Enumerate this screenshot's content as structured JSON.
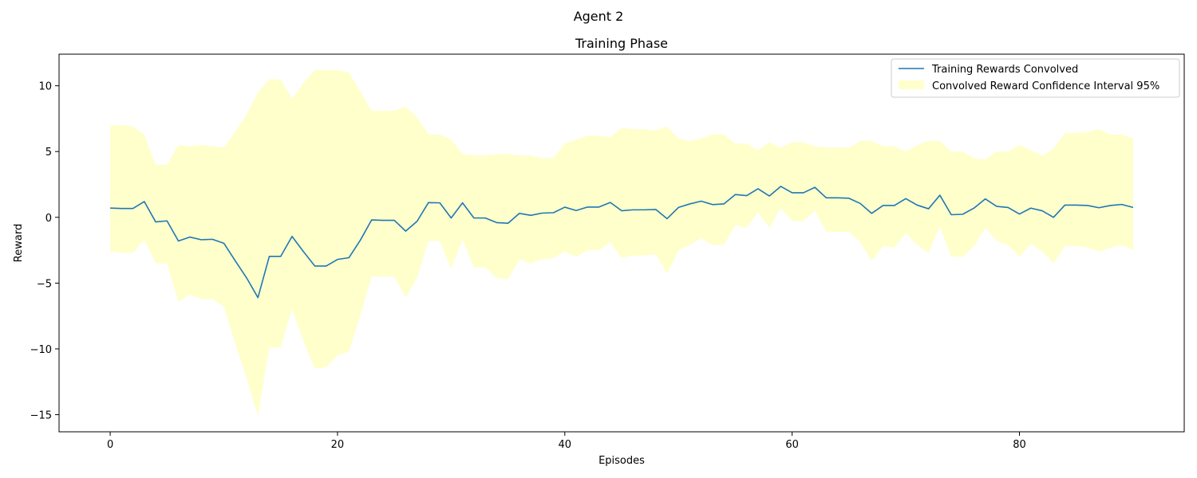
{
  "figure": {
    "suptitle": "Agent 2"
  },
  "chart_data": {
    "type": "line",
    "title": "Training Phase",
    "xlabel": "Episodes",
    "ylabel": "Reward",
    "xlim": [
      -4.5,
      94.5
    ],
    "ylim": [
      -16.3,
      12.4
    ],
    "xticks": [
      0,
      20,
      40,
      60,
      80
    ],
    "yticks": [
      -15,
      -10,
      -5,
      0,
      5,
      10
    ],
    "grid": false,
    "legend_position": "top-right",
    "colors": {
      "line": "#1f77b4",
      "band": "#ffffcc"
    },
    "series": [
      {
        "name": "Training Rewards Convolved",
        "kind": "line",
        "x": [
          0,
          1,
          2,
          3,
          4,
          5,
          6,
          7,
          8,
          9,
          10,
          11,
          12,
          13,
          14,
          15,
          16,
          17,
          18,
          19,
          20,
          21,
          22,
          23,
          24,
          25,
          26,
          27,
          28,
          29,
          30,
          31,
          32,
          33,
          34,
          35,
          36,
          37,
          38,
          39,
          40,
          41,
          42,
          43,
          44,
          45,
          46,
          47,
          48,
          49,
          50,
          51,
          52,
          53,
          54,
          55,
          56,
          57,
          58,
          59,
          60,
          61,
          62,
          63,
          64,
          65,
          66,
          67,
          68,
          69,
          70,
          71,
          72,
          73,
          74,
          75,
          76,
          77,
          78,
          79,
          80,
          81,
          82,
          83,
          84,
          85,
          86,
          87,
          88,
          89,
          90
        ],
        "y": [
          0.7,
          0.67,
          0.67,
          1.2,
          -0.35,
          -0.27,
          -1.8,
          -1.5,
          -1.7,
          -1.67,
          -1.97,
          -3.3,
          -4.6,
          -6.1,
          -2.97,
          -2.97,
          -1.45,
          -2.6,
          -3.7,
          -3.7,
          -3.2,
          -3.07,
          -1.75,
          -0.2,
          -0.23,
          -0.23,
          -1.05,
          -0.3,
          1.12,
          1.1,
          -0.05,
          1.1,
          -0.05,
          -0.05,
          -0.4,
          -0.45,
          0.3,
          0.15,
          0.32,
          0.35,
          0.77,
          0.52,
          0.78,
          0.78,
          1.13,
          0.5,
          0.57,
          0.57,
          0.6,
          -0.1,
          0.75,
          1.02,
          1.23,
          0.97,
          1.02,
          1.73,
          1.65,
          2.17,
          1.62,
          2.35,
          1.87,
          1.87,
          2.28,
          1.48,
          1.48,
          1.45,
          1.05,
          0.3,
          0.9,
          0.9,
          1.42,
          0.93,
          0.65,
          1.68,
          0.2,
          0.23,
          0.7,
          1.4,
          0.83,
          0.75,
          0.25,
          0.7,
          0.5,
          0.0,
          0.93,
          0.93,
          0.9,
          0.73,
          0.9,
          0.98,
          0.75
        ]
      },
      {
        "name": "Convolved Reward Confidence Interval 95%",
        "kind": "band",
        "x": [
          0,
          1,
          2,
          3,
          4,
          5,
          6,
          7,
          8,
          9,
          10,
          11,
          12,
          13,
          14,
          15,
          16,
          17,
          18,
          19,
          20,
          21,
          22,
          23,
          24,
          25,
          26,
          27,
          28,
          29,
          30,
          31,
          32,
          33,
          34,
          35,
          36,
          37,
          38,
          39,
          40,
          41,
          42,
          43,
          44,
          45,
          46,
          47,
          48,
          49,
          50,
          51,
          52,
          53,
          54,
          55,
          56,
          57,
          58,
          59,
          60,
          61,
          62,
          63,
          64,
          65,
          66,
          67,
          68,
          69,
          70,
          71,
          72,
          73,
          74,
          75,
          76,
          77,
          78,
          79,
          80,
          81,
          82,
          83,
          84,
          85,
          86,
          87,
          88,
          89,
          90
        ],
        "upper": [
          7.0,
          7.0,
          6.9,
          6.3,
          4.0,
          4.0,
          5.5,
          5.4,
          5.5,
          5.4,
          5.3,
          6.5,
          7.8,
          9.5,
          10.5,
          10.5,
          9.0,
          10.2,
          11.2,
          11.2,
          11.2,
          11.0,
          9.6,
          8.1,
          8.1,
          8.1,
          8.4,
          7.6,
          6.3,
          6.3,
          5.9,
          4.8,
          4.7,
          4.7,
          4.8,
          4.8,
          4.7,
          4.7,
          4.5,
          4.5,
          5.6,
          5.9,
          6.2,
          6.2,
          6.1,
          6.8,
          6.7,
          6.7,
          6.6,
          6.9,
          6.0,
          5.8,
          6.0,
          6.3,
          6.3,
          5.6,
          5.6,
          5.1,
          5.7,
          5.3,
          5.7,
          5.7,
          5.4,
          5.3,
          5.3,
          5.3,
          5.8,
          5.8,
          5.4,
          5.4,
          5.0,
          5.5,
          5.8,
          5.8,
          5.0,
          5.0,
          4.5,
          4.4,
          5.0,
          5.0,
          5.5,
          5.1,
          4.7,
          5.2,
          6.4,
          6.4,
          6.5,
          6.7,
          6.3,
          6.3,
          6.0
        ],
        "lower": [
          -2.6,
          -2.7,
          -2.7,
          -1.7,
          -3.5,
          -3.5,
          -6.4,
          -5.9,
          -6.2,
          -6.2,
          -6.8,
          -9.6,
          -12.2,
          -15.1,
          -9.9,
          -9.9,
          -7.0,
          -9.4,
          -11.5,
          -11.4,
          -10.5,
          -10.2,
          -7.5,
          -4.5,
          -4.5,
          -4.5,
          -6.1,
          -4.6,
          -1.8,
          -1.8,
          -3.9,
          -1.7,
          -3.8,
          -3.8,
          -4.6,
          -4.7,
          -3.2,
          -3.5,
          -3.2,
          -3.1,
          -2.6,
          -3.0,
          -2.5,
          -2.5,
          -1.9,
          -3.1,
          -2.9,
          -2.9,
          -2.8,
          -4.3,
          -2.5,
          -2.1,
          -1.6,
          -2.1,
          -2.1,
          -0.6,
          -0.8,
          0.4,
          -0.8,
          0.7,
          -0.3,
          -0.3,
          0.5,
          -1.1,
          -1.1,
          -1.1,
          -1.9,
          -3.3,
          -2.2,
          -2.3,
          -1.2,
          -2.1,
          -2.7,
          -0.7,
          -3.0,
          -3.0,
          -2.2,
          -0.8,
          -1.8,
          -2.1,
          -3.0,
          -2.0,
          -2.6,
          -3.5,
          -2.2,
          -2.2,
          -2.3,
          -2.6,
          -2.3,
          -2.1,
          -2.5
        ]
      }
    ]
  }
}
